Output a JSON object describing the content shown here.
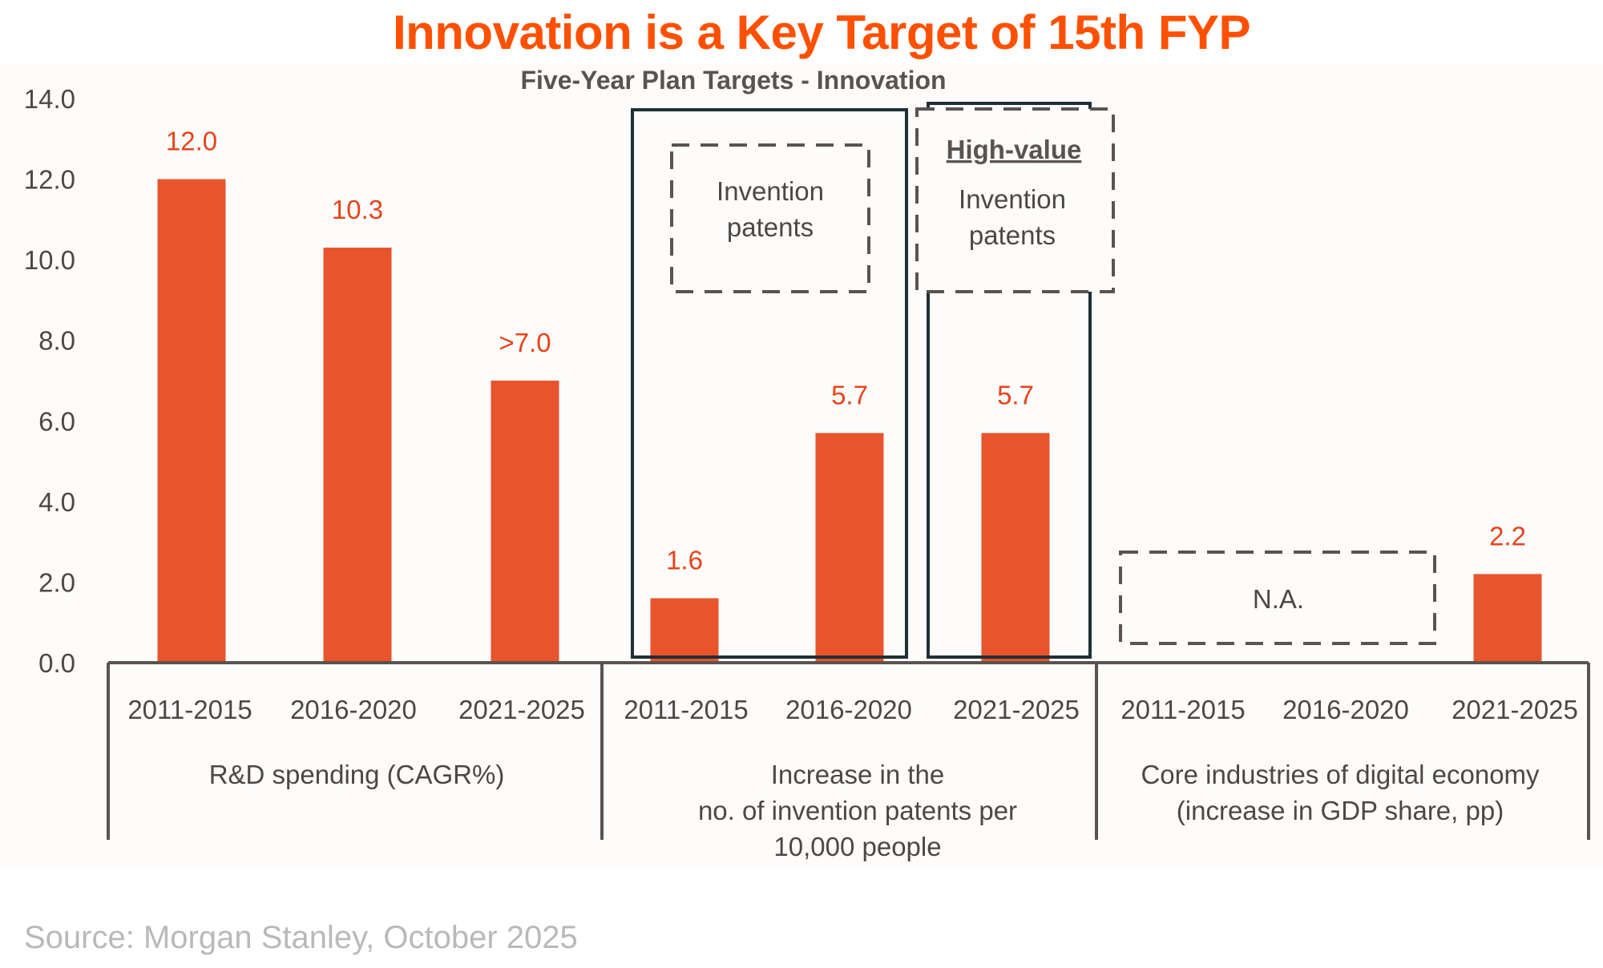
{
  "header": {
    "title": "Innovation is a Key Target of 15th FYP",
    "subtitle": "Five-Year Plan Targets - Innovation"
  },
  "footer": {
    "source": "Source: Morgan Stanley, October 2025"
  },
  "colors": {
    "bar": "#e8542b",
    "value_label": "#e8431a",
    "title": "#ff5000",
    "axis": "#5a5350",
    "highlight_box": "#1f2f36",
    "dashed_box": "#5a5350"
  },
  "annotations": {
    "box1_line1": "Invention",
    "box1_line2": "patents",
    "box2_heading": "High-value",
    "box2_line1": "Invention",
    "box2_line2": "patents",
    "na_label": "N.A."
  },
  "chart_data": {
    "type": "bar",
    "title": "Five-Year Plan Targets - Innovation",
    "xlabel": "",
    "ylabel": "",
    "ylim": [
      0,
      14
    ],
    "yticks": [
      "0.0",
      "2.0",
      "4.0",
      "6.0",
      "8.0",
      "10.0",
      "12.0",
      "14.0"
    ],
    "grid": false,
    "groups": [
      {
        "name": "R&D spending (CAGR%)",
        "label_lines": [
          "R&D spending (CAGR%)"
        ],
        "categories": [
          "2011-2015",
          "2016-2020",
          "2021-2025"
        ],
        "values": [
          12.0,
          10.3,
          7.0
        ],
        "value_labels": [
          "12.0",
          "10.3",
          ">7.0"
        ]
      },
      {
        "name": "Increase in the no. of invention patents per 10,000 people",
        "label_lines": [
          "Increase in the",
          "no. of invention patents per",
          "10,000 people"
        ],
        "categories": [
          "2011-2015",
          "2016-2020",
          "2021-2025"
        ],
        "values": [
          1.6,
          5.7,
          5.7
        ],
        "value_labels": [
          "1.6",
          "5.7",
          "5.7"
        ]
      },
      {
        "name": "Core industries of digital economy (increase in GDP share, pp)",
        "label_lines": [
          "Core industries of digital economy",
          "(increase in GDP share, pp)"
        ],
        "categories": [
          "2011-2015",
          "2016-2020",
          "2021-2025"
        ],
        "values": [
          null,
          null,
          2.2
        ],
        "value_labels": [
          "",
          "",
          "2.2"
        ]
      }
    ]
  }
}
